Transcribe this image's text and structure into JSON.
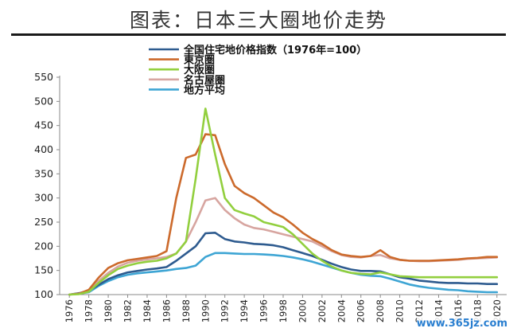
{
  "page": {
    "title": "图表：日本三大圈地价走势",
    "watermark": "www.365jz.com"
  },
  "chart_data": {
    "type": "line",
    "title": "图表：日本三大圈地价走势",
    "xlabel": "",
    "ylabel": "",
    "ylim": [
      100,
      550
    ],
    "yticks": [
      100,
      150,
      200,
      250,
      300,
      350,
      400,
      450,
      500,
      550
    ],
    "xlim": [
      1975,
      2021
    ],
    "xticks": [
      "1976",
      "1978",
      "1980",
      "1982",
      "1984",
      "1986",
      "1988",
      "1990",
      "1992",
      "1994",
      "1996",
      "1998",
      "2000",
      "2002",
      "2004",
      "2006",
      "2008",
      "2010",
      "2012",
      "2014",
      "2016",
      "2018",
      "2020"
    ],
    "grid": false,
    "legend": "top-left",
    "x": [
      1976,
      1977,
      1978,
      1979,
      1980,
      1981,
      1982,
      1983,
      1984,
      1985,
      1986,
      1987,
      1988,
      1989,
      1990,
      1991,
      1992,
      1993,
      1994,
      1995,
      1996,
      1997,
      1998,
      1999,
      2000,
      2001,
      2002,
      2003,
      2004,
      2005,
      2006,
      2007,
      2008,
      2009,
      2010,
      2011,
      2012,
      2013,
      2014,
      2015,
      2016,
      2017,
      2018,
      2019,
      2020
    ],
    "series": [
      {
        "name": "全国住宅地价格指数（1976年=100）",
        "color": "#2e5b8f",
        "values": [
          100,
          103,
          108,
          120,
          132,
          140,
          146,
          149,
          152,
          154,
          157,
          170,
          185,
          200,
          227,
          228,
          215,
          210,
          208,
          205,
          204,
          202,
          198,
          192,
          186,
          180,
          172,
          164,
          157,
          152,
          149,
          149,
          148,
          142,
          136,
          133,
          129,
          127,
          125,
          124,
          124,
          123,
          123,
          122,
          122
        ]
      },
      {
        "name": "東京圏",
        "color": "#cc6a2c",
        "values": [
          100,
          102,
          110,
          135,
          155,
          165,
          171,
          174,
          177,
          180,
          190,
          300,
          383,
          390,
          432,
          430,
          370,
          325,
          310,
          300,
          285,
          270,
          260,
          245,
          228,
          215,
          205,
          192,
          183,
          180,
          178,
          180,
          192,
          178,
          172,
          170,
          170,
          170,
          171,
          172,
          173,
          175,
          176,
          178,
          178
        ]
      },
      {
        "name": "大阪圏",
        "color": "#92cf3e",
        "values": [
          100,
          101,
          106,
          124,
          140,
          153,
          160,
          165,
          168,
          170,
          175,
          185,
          210,
          340,
          485,
          390,
          300,
          275,
          268,
          262,
          250,
          245,
          240,
          225,
          205,
          185,
          170,
          158,
          150,
          145,
          143,
          142,
          146,
          142,
          138,
          137,
          136,
          136,
          136,
          136,
          136,
          136,
          136,
          136,
          136
        ]
      },
      {
        "name": "名古屋圏",
        "color": "#d7a5a0",
        "values": [
          100,
          102,
          108,
          128,
          145,
          158,
          166,
          170,
          173,
          175,
          178,
          185,
          210,
          250,
          295,
          300,
          275,
          258,
          245,
          238,
          235,
          230,
          225,
          220,
          215,
          210,
          200,
          190,
          182,
          178,
          177,
          180,
          182,
          175,
          172,
          170,
          169,
          169,
          170,
          171,
          172,
          174,
          175,
          176,
          177
        ]
      },
      {
        "name": "地方平均",
        "color": "#3ea5d4",
        "values": [
          100,
          102,
          105,
          118,
          128,
          136,
          141,
          144,
          146,
          148,
          150,
          153,
          155,
          160,
          178,
          186,
          186,
          185,
          184,
          184,
          183,
          182,
          180,
          177,
          173,
          168,
          162,
          156,
          150,
          145,
          141,
          139,
          138,
          133,
          127,
          121,
          117,
          114,
          112,
          110,
          109,
          107,
          106,
          105,
          105
        ]
      }
    ]
  }
}
